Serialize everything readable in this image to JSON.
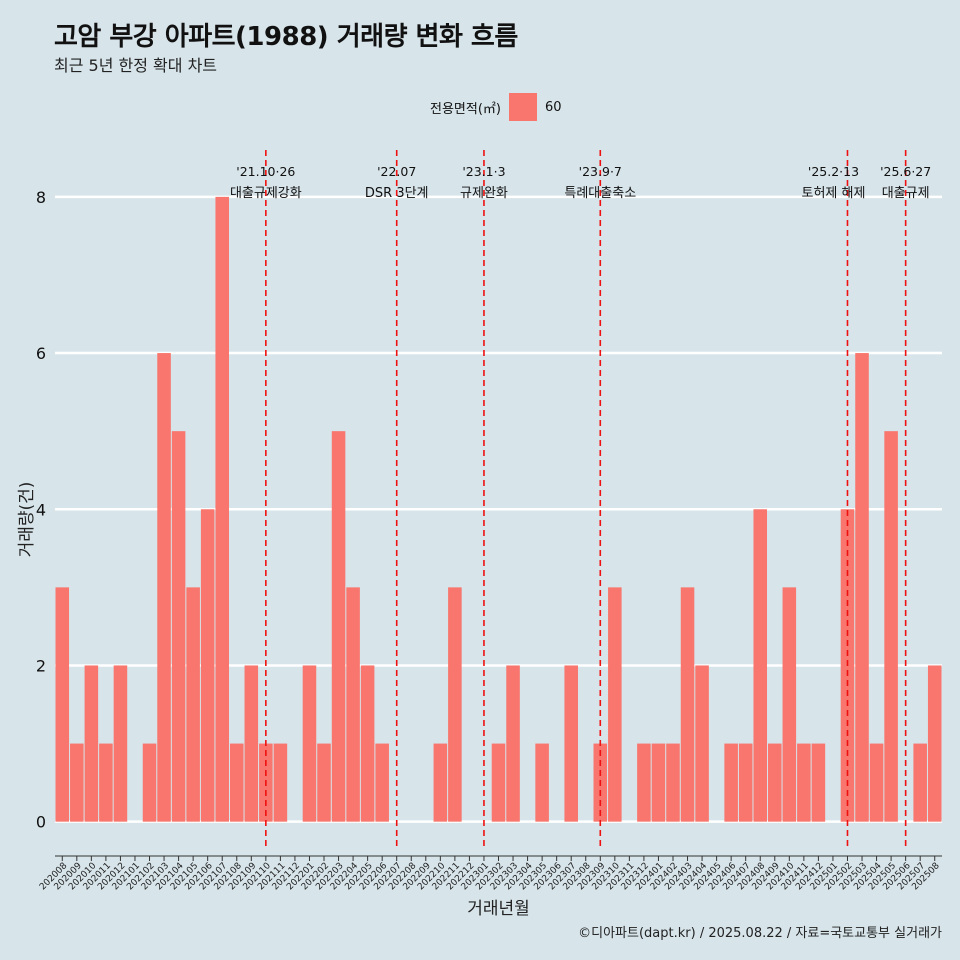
{
  "chart_data": {
    "type": "bar",
    "title": "고암 부강 아파트(1988) 거래량 변화 흐름",
    "subtitle": "최근 5년 한정 확대 차트",
    "xlabel": "거래년월",
    "ylabel": "거래량(건)",
    "ylim": [
      -0.35,
      8.6
    ],
    "yticks": [
      0,
      2,
      4,
      6,
      8
    ],
    "grid": true,
    "legend": {
      "title": "전용면적(㎡)",
      "placement": "top",
      "entries": [
        {
          "label": "60",
          "color": "#f8766d"
        }
      ]
    },
    "categories": [
      "202008",
      "202009",
      "202010",
      "202011",
      "202012",
      "202101",
      "202102",
      "202103",
      "202104",
      "202105",
      "202106",
      "202107",
      "202108",
      "202109",
      "202110",
      "202111",
      "202112",
      "202201",
      "202202",
      "202203",
      "202204",
      "202205",
      "202206",
      "202207",
      "202208",
      "202209",
      "202210",
      "202211",
      "202212",
      "202301",
      "202302",
      "202303",
      "202304",
      "202305",
      "202306",
      "202307",
      "202308",
      "202309",
      "202310",
      "202311",
      "202312",
      "202401",
      "202402",
      "202403",
      "202404",
      "202405",
      "202406",
      "202407",
      "202408",
      "202409",
      "202410",
      "202411",
      "202412",
      "202501",
      "202502",
      "202503",
      "202504",
      "202505",
      "202506",
      "202507",
      "202508"
    ],
    "values": [
      3,
      1,
      2,
      1,
      2,
      0,
      1,
      6,
      5,
      3,
      4,
      8,
      1,
      2,
      1,
      1,
      0,
      2,
      1,
      5,
      3,
      2,
      1,
      0,
      0,
      0,
      1,
      3,
      0,
      0,
      1,
      2,
      0,
      1,
      0,
      2,
      0,
      1,
      3,
      0,
      1,
      1,
      1,
      3,
      2,
      0,
      1,
      1,
      4,
      1,
      3,
      1,
      1,
      0,
      4,
      6,
      1,
      5,
      0,
      1,
      2
    ],
    "bar_color": "#f8766d",
    "events": [
      {
        "category": "202110",
        "date": "'21.10·26",
        "label": "대출규제강화"
      },
      {
        "category": "202207",
        "date": "'22.07",
        "label": "DSR 3단계"
      },
      {
        "category": "202301",
        "date": "'23.1·3",
        "label": "규제완화"
      },
      {
        "category": "202309",
        "date": "'23.9·7",
        "label": "특례대출축소"
      },
      {
        "category": "202502",
        "date": "'25.2·13",
        "label": "토허제 해제"
      },
      {
        "category": "202506",
        "date": "'25.6·27",
        "label": "대출규제"
      }
    ],
    "event_line_color": "#ee1111"
  },
  "caption": "©디아파트(dapt.kr) / 2025.08.22 / 자료=국토교통부 실거래가"
}
